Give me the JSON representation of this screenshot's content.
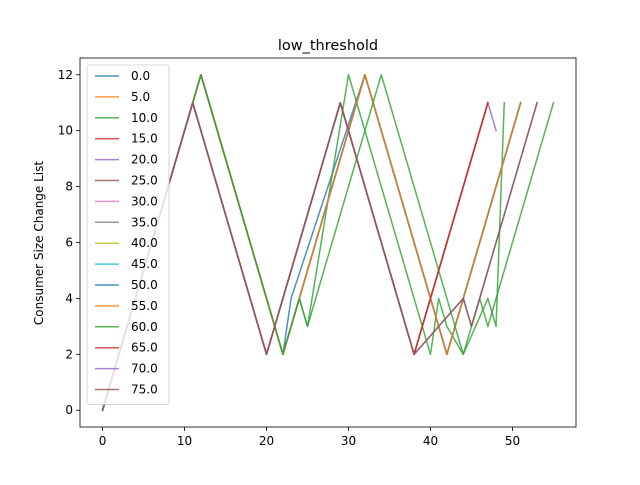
{
  "chart_data": {
    "type": "line",
    "title": "low_threshold",
    "xlabel": "",
    "ylabel": "Consumer Size Change List",
    "xlim": [
      -2.75,
      57.75
    ],
    "ylim": [
      -0.6,
      12.6
    ],
    "xticks": [
      0,
      10,
      20,
      30,
      40,
      50
    ],
    "yticks": [
      0,
      2,
      4,
      6,
      8,
      10,
      12
    ],
    "grid": false,
    "legend_position": "upper left",
    "series": [
      {
        "name": "0.0",
        "color": "#1f77b4",
        "x": [
          0,
          12,
          22,
          23,
          32,
          42,
          51
        ],
        "y": [
          0,
          12,
          2,
          4,
          12,
          2,
          11
        ]
      },
      {
        "name": "5.0",
        "color": "#ff7f0e",
        "x": [
          0,
          12,
          22,
          32,
          42,
          51
        ],
        "y": [
          0,
          12,
          2,
          12,
          2,
          11
        ]
      },
      {
        "name": "10.0",
        "color": "#2ca02c",
        "x": [
          0,
          12,
          22,
          24,
          25,
          30,
          40,
          41,
          42,
          44,
          47,
          48,
          49
        ],
        "y": [
          0,
          12,
          2,
          4,
          3,
          12,
          2,
          4,
          3,
          2,
          4,
          3,
          11
        ]
      },
      {
        "name": "15.0",
        "color": "#d62728",
        "x": [
          0,
          11,
          20,
          29,
          38,
          47
        ],
        "y": [
          0,
          11,
          2,
          11,
          2,
          11
        ]
      },
      {
        "name": "20.0",
        "color": "#9467bd",
        "x": [
          0,
          11,
          20,
          29,
          38,
          47,
          48
        ],
        "y": [
          0,
          11,
          2,
          11,
          2,
          11,
          10
        ]
      },
      {
        "name": "25.0",
        "color": "#8c564b",
        "x": [
          0,
          11,
          20,
          29,
          38,
          47
        ],
        "y": [
          0,
          11,
          2,
          11,
          2,
          11
        ]
      },
      {
        "name": "30.0",
        "color": "#e377c2",
        "x": [
          0,
          12,
          22,
          32,
          42,
          51
        ],
        "y": [
          0,
          12,
          2,
          12,
          2,
          11
        ]
      },
      {
        "name": "35.0",
        "color": "#7f7f7f",
        "x": [
          0,
          12,
          22,
          32,
          42,
          51
        ],
        "y": [
          0,
          12,
          2,
          12,
          2,
          11
        ]
      },
      {
        "name": "40.0",
        "color": "#bcbd22",
        "x": [
          0,
          12,
          22,
          32,
          42,
          51
        ],
        "y": [
          0,
          12,
          2,
          12,
          2,
          11
        ]
      },
      {
        "name": "45.0",
        "color": "#17becf",
        "x": [
          0,
          12,
          22,
          32,
          42,
          51
        ],
        "y": [
          0,
          12,
          2,
          12,
          2,
          11
        ]
      },
      {
        "name": "50.0",
        "color": "#1f77b4",
        "x": [
          0,
          12,
          22,
          32,
          42,
          51
        ],
        "y": [
          0,
          12,
          2,
          12,
          2,
          11
        ]
      },
      {
        "name": "55.0",
        "color": "#ff7f0e",
        "x": [
          0,
          12,
          22,
          32,
          42,
          51
        ],
        "y": [
          0,
          12,
          2,
          12,
          2,
          11
        ]
      },
      {
        "name": "60.0",
        "color": "#2ca02c",
        "x": [
          0,
          12,
          22,
          24,
          25,
          34,
          44,
          46,
          47,
          55
        ],
        "y": [
          0,
          12,
          2,
          4,
          3,
          12,
          2,
          4,
          3,
          11
        ]
      },
      {
        "name": "65.0",
        "color": "#d62728",
        "x": [
          0,
          11,
          20,
          29,
          38,
          47
        ],
        "y": [
          0,
          11,
          2,
          11,
          2,
          11
        ]
      },
      {
        "name": "70.0",
        "color": "#9467bd",
        "x": [
          0,
          11,
          20,
          29,
          38,
          44,
          45,
          53
        ],
        "y": [
          0,
          11,
          2,
          11,
          2,
          4,
          3,
          11
        ]
      },
      {
        "name": "75.0",
        "color": "#8c564b",
        "x": [
          0,
          11,
          20,
          29,
          38,
          44,
          45,
          53
        ],
        "y": [
          0,
          11,
          2,
          11,
          2,
          4,
          3,
          11
        ]
      }
    ]
  }
}
